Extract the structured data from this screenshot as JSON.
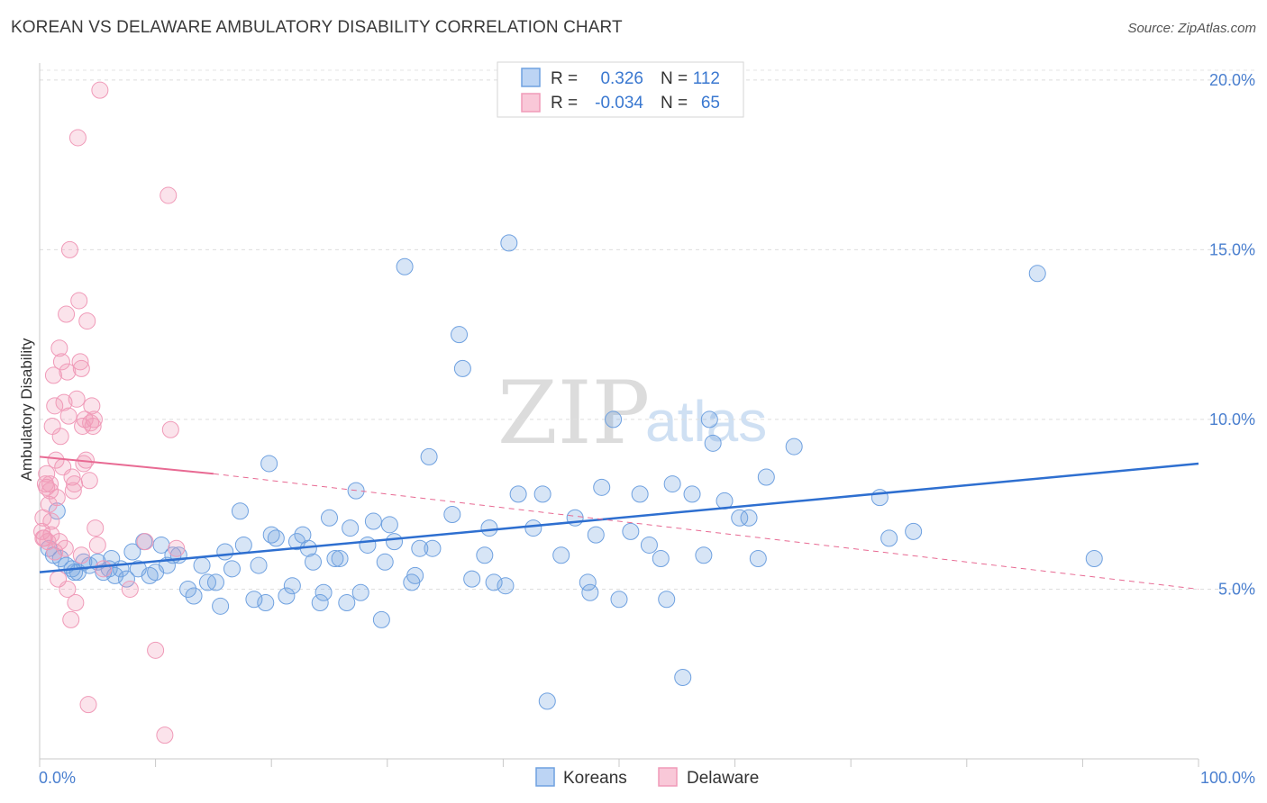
{
  "header": {
    "title": "KOREAN VS DELAWARE AMBULATORY DISABILITY CORRELATION CHART",
    "source": "Source: ZipAtlas.com"
  },
  "watermark": {
    "zip": "ZIP",
    "atlas": "atlas"
  },
  "legend": {
    "rows": [
      {
        "r_label": "R =",
        "r_value": "0.326",
        "n_label": "N =",
        "n_value": "112"
      },
      {
        "r_label": "R =",
        "r_value": "-0.034",
        "n_label": "N =",
        "n_value": "65"
      }
    ]
  },
  "bottom_legend": [
    "Koreans",
    "Delaware"
  ],
  "chart_data": {
    "type": "scatter",
    "title": "KOREAN VS DELAWARE AMBULATORY DISABILITY CORRELATION CHART",
    "xlabel": "",
    "ylabel": "Ambulatory Disability",
    "xlim": [
      0,
      100
    ],
    "ylim": [
      0,
      20.5
    ],
    "x_ticks_labels": [
      "0.0%",
      "100.0%"
    ],
    "y_ticks": [
      5,
      10,
      15,
      20
    ],
    "y_tick_labels": [
      "5.0%",
      "10.0%",
      "15.0%",
      "20.0%"
    ],
    "grid": "horizontal dashed",
    "legend_position": "top-center",
    "colors": {
      "Koreans": "#6fa1e0",
      "Delaware": "#f09ab8",
      "korean_line": "#2e6fd0",
      "delaware_line": "#e86a93"
    },
    "series": [
      {
        "name": "Koreans",
        "R": 0.326,
        "N": 112,
        "trend": {
          "x": [
            0,
            100
          ],
          "y": [
            5.5,
            8.7
          ]
        },
        "points": [
          [
            0.8,
            6.2
          ],
          [
            1.2,
            6.0
          ],
          [
            1.8,
            5.9
          ],
          [
            2.3,
            5.7
          ],
          [
            2.8,
            5.6
          ],
          [
            3.3,
            5.5
          ],
          [
            3.8,
            5.8
          ],
          [
            4.3,
            5.7
          ],
          [
            5.0,
            5.8
          ],
          [
            5.5,
            5.5
          ],
          [
            6.0,
            5.6
          ],
          [
            6.5,
            5.4
          ],
          [
            7.0,
            5.6
          ],
          [
            7.5,
            5.3
          ],
          [
            8.0,
            6.1
          ],
          [
            8.5,
            5.6
          ],
          [
            9.0,
            6.4
          ],
          [
            9.5,
            5.4
          ],
          [
            10.0,
            5.5
          ],
          [
            10.5,
            6.3
          ],
          [
            11.0,
            5.7
          ],
          [
            11.5,
            6.0
          ],
          [
            12.0,
            6.0
          ],
          [
            12.8,
            5.0
          ],
          [
            13.3,
            4.8
          ],
          [
            14.0,
            5.7
          ],
          [
            14.5,
            5.2
          ],
          [
            15.2,
            5.2
          ],
          [
            15.6,
            4.5
          ],
          [
            16.0,
            6.1
          ],
          [
            16.6,
            5.6
          ],
          [
            17.3,
            7.3
          ],
          [
            17.6,
            6.3
          ],
          [
            18.5,
            4.7
          ],
          [
            18.9,
            5.7
          ],
          [
            19.5,
            4.6
          ],
          [
            19.8,
            8.7
          ],
          [
            20.0,
            6.6
          ],
          [
            20.4,
            6.5
          ],
          [
            21.3,
            4.8
          ],
          [
            21.8,
            5.1
          ],
          [
            22.2,
            6.4
          ],
          [
            22.7,
            6.6
          ],
          [
            23.2,
            6.2
          ],
          [
            23.6,
            5.8
          ],
          [
            24.2,
            4.6
          ],
          [
            24.5,
            4.9
          ],
          [
            25.0,
            7.1
          ],
          [
            25.5,
            5.9
          ],
          [
            25.9,
            5.9
          ],
          [
            26.5,
            4.6
          ],
          [
            26.8,
            6.8
          ],
          [
            27.3,
            7.9
          ],
          [
            27.7,
            4.9
          ],
          [
            28.3,
            6.3
          ],
          [
            28.8,
            7.0
          ],
          [
            29.5,
            4.1
          ],
          [
            29.8,
            5.8
          ],
          [
            30.2,
            6.9
          ],
          [
            30.6,
            6.4
          ],
          [
            31.5,
            14.5
          ],
          [
            32.1,
            5.2
          ],
          [
            32.4,
            5.4
          ],
          [
            32.8,
            6.2
          ],
          [
            33.6,
            8.9
          ],
          [
            33.9,
            6.2
          ],
          [
            35.6,
            7.2
          ],
          [
            36.2,
            12.5
          ],
          [
            36.5,
            11.5
          ],
          [
            37.3,
            5.3
          ],
          [
            38.4,
            6.0
          ],
          [
            38.8,
            6.8
          ],
          [
            39.2,
            5.2
          ],
          [
            40.2,
            5.1
          ],
          [
            40.5,
            15.2
          ],
          [
            41.3,
            7.8
          ],
          [
            42.6,
            6.8
          ],
          [
            43.4,
            7.8
          ],
          [
            43.8,
            1.7
          ],
          [
            45.0,
            6.0
          ],
          [
            46.2,
            7.1
          ],
          [
            47.3,
            5.2
          ],
          [
            47.5,
            4.9
          ],
          [
            48.0,
            6.6
          ],
          [
            48.5,
            8.0
          ],
          [
            49.5,
            10.0
          ],
          [
            50.0,
            4.7
          ],
          [
            51.0,
            6.7
          ],
          [
            51.8,
            7.8
          ],
          [
            52.6,
            6.3
          ],
          [
            53.6,
            5.9
          ],
          [
            54.1,
            4.7
          ],
          [
            54.6,
            8.1
          ],
          [
            55.5,
            2.4
          ],
          [
            56.3,
            7.8
          ],
          [
            57.3,
            6.0
          ],
          [
            57.8,
            10.0
          ],
          [
            58.1,
            9.3
          ],
          [
            59.1,
            7.6
          ],
          [
            60.4,
            7.1
          ],
          [
            61.2,
            7.1
          ],
          [
            62.0,
            5.9
          ],
          [
            62.7,
            8.3
          ],
          [
            65.1,
            9.2
          ],
          [
            72.5,
            7.7
          ],
          [
            73.3,
            6.5
          ],
          [
            75.4,
            6.7
          ],
          [
            86.1,
            14.3
          ],
          [
            91.0,
            5.9
          ],
          [
            1.5,
            7.3
          ],
          [
            6.2,
            5.9
          ],
          [
            3.0,
            5.5
          ]
        ]
      },
      {
        "name": "Delaware",
        "R": -0.034,
        "N": 65,
        "trend_solid": {
          "x": [
            0,
            15
          ],
          "y": [
            8.9,
            8.4
          ]
        },
        "trend_dashed": {
          "x": [
            15,
            100
          ],
          "y": [
            8.4,
            5.0
          ]
        },
        "points": [
          [
            0.2,
            6.7
          ],
          [
            0.3,
            7.1
          ],
          [
            0.4,
            6.5
          ],
          [
            0.5,
            8.1
          ],
          [
            0.6,
            8.4
          ],
          [
            0.7,
            6.4
          ],
          [
            0.8,
            7.5
          ],
          [
            0.9,
            8.1
          ],
          [
            1.0,
            6.6
          ],
          [
            1.1,
            9.8
          ],
          [
            1.2,
            11.3
          ],
          [
            1.3,
            10.4
          ],
          [
            1.4,
            8.8
          ],
          [
            1.5,
            7.7
          ],
          [
            1.6,
            5.3
          ],
          [
            1.7,
            12.1
          ],
          [
            1.8,
            9.5
          ],
          [
            1.9,
            11.7
          ],
          [
            2.0,
            8.6
          ],
          [
            2.1,
            10.5
          ],
          [
            2.2,
            6.2
          ],
          [
            2.3,
            13.1
          ],
          [
            2.4,
            11.4
          ],
          [
            2.5,
            10.1
          ],
          [
            2.6,
            15.0
          ],
          [
            2.7,
            4.1
          ],
          [
            2.8,
            8.3
          ],
          [
            2.9,
            7.9
          ],
          [
            3.0,
            8.1
          ],
          [
            3.1,
            4.6
          ],
          [
            3.2,
            10.6
          ],
          [
            3.3,
            18.3
          ],
          [
            3.4,
            13.5
          ],
          [
            3.5,
            11.7
          ],
          [
            3.6,
            11.5
          ],
          [
            3.7,
            9.8
          ],
          [
            3.8,
            8.7
          ],
          [
            3.9,
            10.0
          ],
          [
            4.0,
            8.8
          ],
          [
            4.1,
            12.9
          ],
          [
            4.2,
            1.6
          ],
          [
            4.3,
            8.2
          ],
          [
            4.4,
            9.9
          ],
          [
            4.5,
            10.4
          ],
          [
            4.6,
            9.8
          ],
          [
            4.7,
            10.0
          ],
          [
            4.8,
            6.8
          ],
          [
            5.0,
            6.3
          ],
          [
            5.2,
            19.7
          ],
          [
            5.5,
            5.6
          ],
          [
            7.8,
            5.0
          ],
          [
            9.1,
            6.4
          ],
          [
            10.0,
            3.2
          ],
          [
            10.8,
            0.7
          ],
          [
            11.1,
            16.6
          ],
          [
            11.3,
            9.7
          ],
          [
            11.8,
            6.2
          ],
          [
            0.6,
            8.0
          ],
          [
            1.0,
            7.0
          ],
          [
            1.3,
            6.1
          ],
          [
            2.4,
            5.0
          ],
          [
            0.3,
            6.5
          ],
          [
            0.9,
            7.9
          ],
          [
            1.7,
            6.4
          ],
          [
            3.6,
            6.0
          ]
        ]
      }
    ]
  }
}
